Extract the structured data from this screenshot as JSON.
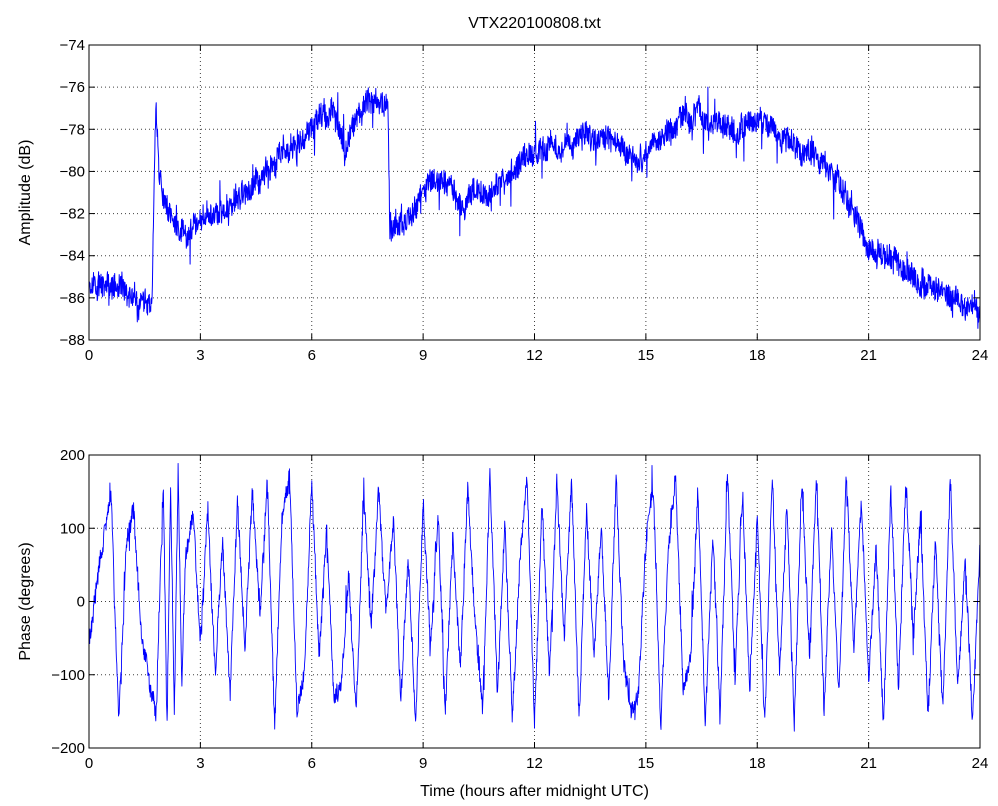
{
  "chart_data": [
    {
      "type": "line",
      "title": "VTX220100808.txt",
      "xlabel": "",
      "ylabel": "Amplitude (dB)",
      "xlim": [
        0,
        24
      ],
      "ylim": [
        -88,
        -74
      ],
      "xticks": [
        0,
        3,
        6,
        9,
        12,
        15,
        18,
        21,
        24
      ],
      "yticks": [
        -74,
        -76,
        -78,
        -80,
        -82,
        -84,
        -86,
        -88
      ],
      "grid": true,
      "color": "#0000ff",
      "series": [
        {
          "x": [
            0,
            0.5,
            1.0,
            1.5,
            1.7,
            1.75,
            1.8,
            1.85,
            1.9,
            2.0,
            2.3,
            2.6,
            3.0,
            3.3,
            3.6,
            3.9,
            4.2,
            4.5,
            4.8,
            5.0,
            5.3,
            5.6,
            5.9,
            6.2,
            6.5,
            6.7,
            6.9,
            7.1,
            7.3,
            7.6,
            7.9,
            8.05,
            8.1,
            8.3,
            8.6,
            8.9,
            9.2,
            9.5,
            9.8,
            10.1,
            10.4,
            10.7,
            11.0,
            11.3,
            11.6,
            11.9,
            12.2,
            12.4,
            12.7,
            13.0,
            13.3,
            13.6,
            13.9,
            14.2,
            14.5,
            14.8,
            15.1,
            15.4,
            15.7,
            16.0,
            16.3,
            16.6,
            16.9,
            17.2,
            17.5,
            17.8,
            18.1,
            18.4,
            18.7,
            19.0,
            19.3,
            19.6,
            19.9,
            20.2,
            20.5,
            20.8,
            21.1,
            21.4,
            21.7,
            22.0,
            22.3,
            22.6,
            22.9,
            23.2,
            23.5,
            23.8,
            24.0
          ],
          "y": [
            -85.3,
            -85.5,
            -85.8,
            -86.3,
            -86.6,
            -81.5,
            -76.8,
            -78.5,
            -80.2,
            -81.5,
            -82.5,
            -83.0,
            -82.4,
            -82.0,
            -82.0,
            -81.5,
            -81.0,
            -80.5,
            -80.0,
            -79.5,
            -79.0,
            -78.7,
            -78.3,
            -77.5,
            -77.2,
            -77.8,
            -79.0,
            -78.0,
            -77.3,
            -76.8,
            -76.6,
            -76.5,
            -82.8,
            -82.5,
            -82.2,
            -81.5,
            -80.2,
            -80.4,
            -80.7,
            -81.8,
            -80.7,
            -81.4,
            -80.6,
            -80.2,
            -79.6,
            -79.4,
            -79.0,
            -78.6,
            -78.8,
            -78.6,
            -78.4,
            -78.3,
            -78.5,
            -78.7,
            -79.0,
            -79.6,
            -78.8,
            -78.3,
            -78.0,
            -77.7,
            -77.3,
            -77.5,
            -77.9,
            -78.0,
            -78.1,
            -77.8,
            -77.7,
            -77.9,
            -78.4,
            -78.7,
            -79.0,
            -79.2,
            -79.7,
            -80.6,
            -81.6,
            -82.8,
            -83.6,
            -84.0,
            -84.4,
            -84.8,
            -85.3,
            -85.6,
            -85.8,
            -86.0,
            -86.2,
            -86.5,
            -86.8
          ]
        }
      ]
    },
    {
      "type": "line",
      "title": "",
      "xlabel": "Time (hours after midnight UTC)",
      "ylabel": "Phase (degrees)",
      "xlim": [
        0,
        24
      ],
      "ylim": [
        -200,
        200
      ],
      "xticks": [
        0,
        3,
        6,
        9,
        12,
        15,
        18,
        21,
        24
      ],
      "yticks": [
        200,
        100,
        0,
        -100,
        -200
      ],
      "grid": true,
      "color": "#0000ff",
      "series": [
        {
          "x": [
            0,
            0.2,
            0.4,
            0.6,
            0.8,
            1.0,
            1.2,
            1.4,
            1.6,
            1.8,
            2.0,
            2.1,
            2.2,
            2.3,
            2.4,
            2.5,
            2.6,
            2.8,
            3.0,
            3.2,
            3.4,
            3.6,
            3.8,
            4.0,
            4.2,
            4.4,
            4.6,
            4.8,
            5.0,
            5.2,
            5.4,
            5.6,
            5.8,
            6.0,
            6.2,
            6.4,
            6.6,
            6.8,
            7.0,
            7.2,
            7.4,
            7.6,
            7.8,
            8.0,
            8.2,
            8.4,
            8.6,
            8.8,
            9.0,
            9.2,
            9.4,
            9.6,
            9.8,
            10.0,
            10.2,
            10.4,
            10.6,
            10.8,
            11.0,
            11.2,
            11.4,
            11.6,
            11.8,
            12.0,
            12.2,
            12.4,
            12.6,
            12.8,
            13.0,
            13.2,
            13.4,
            13.6,
            13.8,
            14.0,
            14.2,
            14.4,
            14.6,
            14.8,
            15.0,
            15.2,
            15.4,
            15.6,
            15.8,
            16.0,
            16.2,
            16.4,
            16.6,
            16.8,
            17.0,
            17.2,
            17.4,
            17.6,
            17.8,
            18.0,
            18.2,
            18.4,
            18.6,
            18.8,
            19.0,
            19.2,
            19.4,
            19.6,
            19.8,
            20.0,
            20.2,
            20.4,
            20.6,
            20.8,
            21.0,
            21.2,
            21.4,
            21.6,
            21.8,
            22.0,
            22.2,
            22.4,
            22.6,
            22.8,
            23.0,
            23.2,
            23.4,
            23.6,
            23.8,
            24.0
          ],
          "y": [
            -60,
            20,
            90,
            150,
            -170,
            80,
            130,
            -40,
            -100,
            -160,
            170,
            -170,
            160,
            -150,
            175,
            -120,
            60,
            120,
            -50,
            130,
            -100,
            80,
            -130,
            140,
            -60,
            150,
            -20,
            170,
            -170,
            120,
            170,
            -150,
            -100,
            160,
            -80,
            100,
            -140,
            -110,
            30,
            -160,
            150,
            -30,
            150,
            -20,
            110,
            -130,
            60,
            -170,
            140,
            -60,
            120,
            -150,
            90,
            -100,
            160,
            -30,
            -150,
            170,
            -120,
            100,
            -160,
            50,
            170,
            -170,
            140,
            -100,
            160,
            -50,
            170,
            -160,
            120,
            -80,
            100,
            -140,
            170,
            -90,
            -160,
            -130,
            80,
            160,
            -170,
            60,
            170,
            -120,
            -80,
            150,
            -170,
            100,
            -160,
            170,
            -110,
            150,
            -130,
            120,
            -170,
            170,
            -100,
            140,
            -170,
            160,
            -80,
            170,
            -150,
            100,
            -130,
            170,
            -60,
            140,
            -100,
            80,
            -170,
            150,
            -120,
            170,
            -40,
            120,
            -160,
            90,
            -150,
            170,
            -120,
            60,
            -170,
            80
          ]
        }
      ]
    }
  ]
}
